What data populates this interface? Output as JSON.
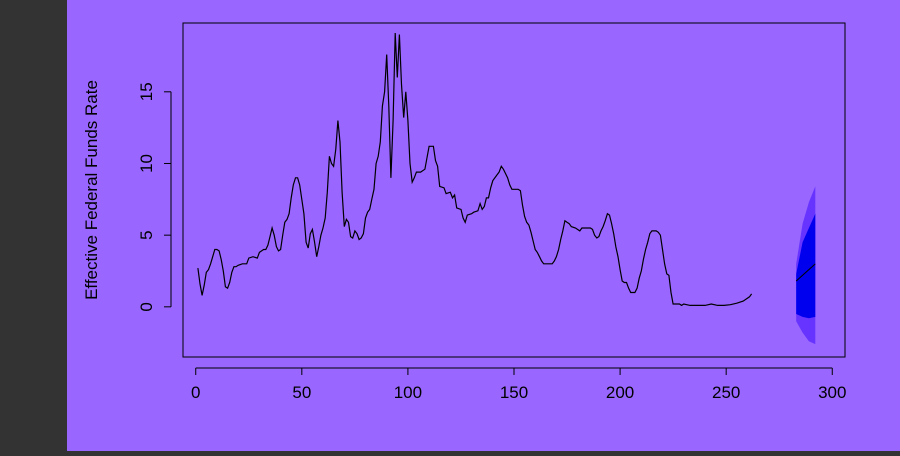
{
  "colors": {
    "sidebar": "#333333",
    "plot_background": "#9966FF",
    "line": "#000000",
    "forecast_inner": "#0000EE",
    "forecast_outer": "#6633FF"
  },
  "chart_data": {
    "type": "line",
    "title": "",
    "xlabel": "",
    "ylabel": "Effective Federal Funds Rate",
    "xlim": [
      -6,
      306
    ],
    "ylim": [
      -3.5,
      19.8
    ],
    "x_ticks": [
      0,
      50,
      100,
      150,
      200,
      250,
      300
    ],
    "y_ticks": [
      0,
      5,
      10,
      15
    ],
    "x_tick_labels": [
      "0",
      "50",
      "100",
      "150",
      "200",
      "250",
      "300"
    ],
    "y_tick_labels": [
      "0",
      "5",
      "10",
      "15"
    ],
    "grid": false,
    "series": [
      {
        "points": [
          [
            1,
            2.7
          ],
          [
            2,
            1.6
          ],
          [
            3,
            0.8
          ],
          [
            4,
            1.5
          ],
          [
            5,
            2.4
          ],
          [
            6,
            2.6
          ],
          [
            7,
            3.0
          ],
          [
            8,
            3.5
          ],
          [
            9,
            4.0
          ],
          [
            10,
            4.0
          ],
          [
            11,
            3.9
          ],
          [
            12,
            3.3
          ],
          [
            13,
            2.5
          ],
          [
            14,
            1.4
          ],
          [
            15,
            1.3
          ],
          [
            16,
            1.7
          ],
          [
            17,
            2.4
          ],
          [
            18,
            2.8
          ],
          [
            19,
            2.8
          ],
          [
            20,
            2.9
          ],
          [
            22,
            3.0
          ],
          [
            24,
            3.0
          ],
          [
            25,
            3.4
          ],
          [
            27,
            3.5
          ],
          [
            29,
            3.4
          ],
          [
            30,
            3.8
          ],
          [
            32,
            4.0
          ],
          [
            33,
            4.0
          ],
          [
            34,
            4.3
          ],
          [
            35,
            4.9
          ],
          [
            36,
            5.5
          ],
          [
            37,
            5.0
          ],
          [
            38,
            4.2
          ],
          [
            39,
            3.9
          ],
          [
            40,
            4.0
          ],
          [
            41,
            5.0
          ],
          [
            42,
            5.9
          ],
          [
            43,
            6.1
          ],
          [
            44,
            6.5
          ],
          [
            45,
            7.6
          ],
          [
            46,
            8.5
          ],
          [
            47,
            9.0
          ],
          [
            48,
            9.0
          ],
          [
            49,
            8.5
          ],
          [
            50,
            7.5
          ],
          [
            51,
            6.5
          ],
          [
            52,
            4.5
          ],
          [
            53,
            4.1
          ],
          [
            54,
            5.1
          ],
          [
            55,
            5.4
          ],
          [
            56,
            4.5
          ],
          [
            57,
            3.5
          ],
          [
            58,
            4.2
          ],
          [
            59,
            5.0
          ],
          [
            60,
            5.5
          ],
          [
            61,
            6.2
          ],
          [
            62,
            8.0
          ],
          [
            63,
            10.5
          ],
          [
            64,
            10.0
          ],
          [
            65,
            9.8
          ],
          [
            66,
            11.0
          ],
          [
            67,
            13.0
          ],
          [
            68,
            11.5
          ],
          [
            69,
            8.0
          ],
          [
            70,
            5.6
          ],
          [
            71,
            6.1
          ],
          [
            72,
            5.9
          ],
          [
            73,
            4.9
          ],
          [
            74,
            4.8
          ],
          [
            75,
            5.3
          ],
          [
            76,
            5.1
          ],
          [
            77,
            4.7
          ],
          [
            78,
            4.8
          ],
          [
            79,
            5.1
          ],
          [
            80,
            6.2
          ],
          [
            81,
            6.6
          ],
          [
            82,
            6.8
          ],
          [
            83,
            7.5
          ],
          [
            84,
            8.2
          ],
          [
            85,
            10.0
          ],
          [
            86,
            10.5
          ],
          [
            87,
            11.5
          ],
          [
            88,
            14.0
          ],
          [
            89,
            15.0
          ],
          [
            90,
            17.6
          ],
          [
            91,
            14.0
          ],
          [
            92,
            9.0
          ],
          [
            93,
            13.0
          ],
          [
            94,
            19.1
          ],
          [
            95,
            16.0
          ],
          [
            96,
            19.0
          ],
          [
            97,
            15.5
          ],
          [
            98,
            13.2
          ],
          [
            99,
            15.0
          ],
          [
            100,
            13.0
          ],
          [
            101,
            10.0
          ],
          [
            102,
            8.7
          ],
          [
            103,
            9.0
          ],
          [
            104,
            9.4
          ],
          [
            106,
            9.4
          ],
          [
            108,
            9.6
          ],
          [
            109,
            10.4
          ],
          [
            110,
            11.2
          ],
          [
            112,
            11.2
          ],
          [
            113,
            10.2
          ],
          [
            114,
            9.8
          ],
          [
            115,
            8.4
          ],
          [
            117,
            8.3
          ],
          [
            118,
            7.9
          ],
          [
            120,
            8.0
          ],
          [
            121,
            7.6
          ],
          [
            122,
            7.8
          ],
          [
            123,
            6.9
          ],
          [
            125,
            6.8
          ],
          [
            126,
            6.2
          ],
          [
            127,
            5.9
          ],
          [
            128,
            6.4
          ],
          [
            130,
            6.5
          ],
          [
            131,
            6.6
          ],
          [
            133,
            6.7
          ],
          [
            134,
            7.2
          ],
          [
            135,
            6.8
          ],
          [
            136,
            7.0
          ],
          [
            137,
            7.6
          ],
          [
            138,
            7.6
          ],
          [
            139,
            8.3
          ],
          [
            140,
            8.8
          ],
          [
            142,
            9.2
          ],
          [
            143,
            9.4
          ],
          [
            144,
            9.8
          ],
          [
            145,
            9.6
          ],
          [
            146,
            9.3
          ],
          [
            147,
            9.0
          ],
          [
            148,
            8.5
          ],
          [
            149,
            8.2
          ],
          [
            151,
            8.2
          ],
          [
            152,
            8.2
          ],
          [
            153,
            8.1
          ],
          [
            154,
            7.1
          ],
          [
            155,
            6.3
          ],
          [
            156,
            5.9
          ],
          [
            157,
            5.7
          ],
          [
            158,
            5.2
          ],
          [
            159,
            4.6
          ],
          [
            160,
            4.0
          ],
          [
            161,
            3.8
          ],
          [
            162,
            3.5
          ],
          [
            163,
            3.2
          ],
          [
            164,
            3.0
          ],
          [
            166,
            3.0
          ],
          [
            168,
            3.0
          ],
          [
            169,
            3.2
          ],
          [
            170,
            3.5
          ],
          [
            171,
            4.0
          ],
          [
            172,
            4.7
          ],
          [
            173,
            5.3
          ],
          [
            174,
            6.0
          ],
          [
            175,
            5.9
          ],
          [
            176,
            5.8
          ],
          [
            177,
            5.6
          ],
          [
            179,
            5.5
          ],
          [
            181,
            5.3
          ],
          [
            182,
            5.5
          ],
          [
            184,
            5.5
          ],
          [
            186,
            5.5
          ],
          [
            187,
            5.4
          ],
          [
            188,
            5.0
          ],
          [
            189,
            4.8
          ],
          [
            190,
            4.9
          ],
          [
            191,
            5.3
          ],
          [
            192,
            5.6
          ],
          [
            193,
            6.0
          ],
          [
            194,
            6.5
          ],
          [
            195,
            6.4
          ],
          [
            196,
            5.8
          ],
          [
            197,
            5.1
          ],
          [
            198,
            4.2
          ],
          [
            199,
            3.5
          ],
          [
            200,
            2.6
          ],
          [
            201,
            1.8
          ],
          [
            202,
            1.7
          ],
          [
            203,
            1.7
          ],
          [
            204,
            1.3
          ],
          [
            205,
            1.0
          ],
          [
            206,
            1.0
          ],
          [
            207,
            1.0
          ],
          [
            208,
            1.3
          ],
          [
            209,
            2.0
          ],
          [
            210,
            2.5
          ],
          [
            211,
            3.3
          ],
          [
            212,
            4.0
          ],
          [
            213,
            4.5
          ],
          [
            214,
            5.1
          ],
          [
            215,
            5.3
          ],
          [
            217,
            5.3
          ],
          [
            218,
            5.2
          ],
          [
            219,
            5.0
          ],
          [
            220,
            4.0
          ],
          [
            221,
            3.0
          ],
          [
            222,
            2.3
          ],
          [
            223,
            2.2
          ],
          [
            224,
            1.0
          ],
          [
            225,
            0.2
          ],
          [
            226,
            0.2
          ],
          [
            228,
            0.2
          ],
          [
            229,
            0.1
          ],
          [
            230,
            0.2
          ],
          [
            233,
            0.1
          ],
          [
            236,
            0.1
          ],
          [
            240,
            0.1
          ],
          [
            243,
            0.2
          ],
          [
            246,
            0.1
          ],
          [
            249,
            0.1
          ],
          [
            252,
            0.15
          ],
          [
            255,
            0.25
          ],
          [
            258,
            0.4
          ],
          [
            261,
            0.7
          ],
          [
            262,
            0.9
          ]
        ]
      }
    ],
    "forecast": {
      "start_x": 283,
      "end_x": 292,
      "mean_x": [
        283,
        292
      ],
      "mean_y": [
        1.8,
        3.0
      ],
      "inner_band": {
        "x": [
          283,
          286,
          289,
          292
        ],
        "lower": [
          -0.5,
          -0.7,
          -0.8,
          -0.7
        ],
        "upper": [
          2.3,
          4.5,
          5.5,
          6.5
        ]
      },
      "outer_band": {
        "x": [
          283,
          286,
          289,
          292
        ],
        "lower": [
          -1.0,
          -1.8,
          -2.4,
          -2.6
        ],
        "upper": [
          3.0,
          5.8,
          7.3,
          8.4
        ]
      }
    }
  }
}
